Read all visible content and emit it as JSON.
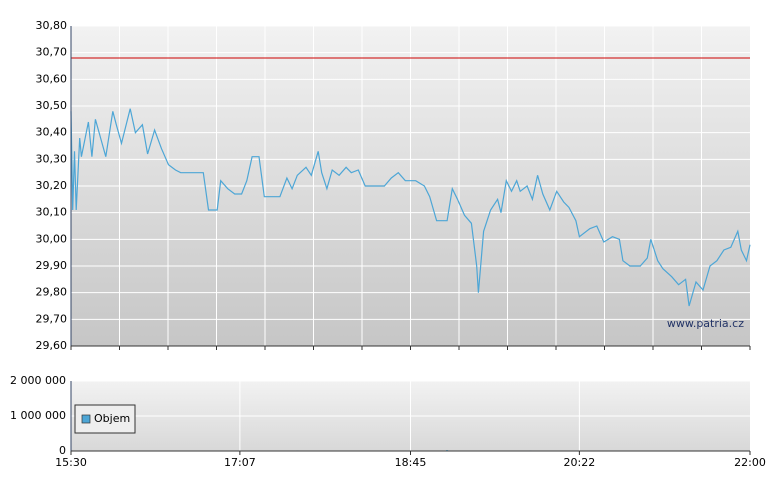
{
  "chart_data": [
    {
      "type": "line",
      "color": "#4da6d6",
      "xlim": [
        "15:30",
        "22:00"
      ],
      "ylim": [
        29.6,
        30.8
      ],
      "yticks": [
        {
          "value": 29.6,
          "label": "29,60"
        },
        {
          "value": 29.7,
          "label": "29,70"
        },
        {
          "value": 29.8,
          "label": "29,80"
        },
        {
          "value": 29.9,
          "label": "29,90"
        },
        {
          "value": 30.0,
          "label": "30,00"
        },
        {
          "value": 30.1,
          "label": "30,10"
        },
        {
          "value": 30.2,
          "label": "30,20"
        },
        {
          "value": 30.3,
          "label": "30,30"
        },
        {
          "value": 30.4,
          "label": "30,40"
        },
        {
          "value": 30.5,
          "label": "30,50"
        },
        {
          "value": 30.6,
          "label": "30,60"
        },
        {
          "value": 30.7,
          "label": "30,70"
        },
        {
          "value": 30.8,
          "label": "30,80"
        }
      ],
      "reference_line": {
        "value": 30.68,
        "color": "#cc0000"
      },
      "watermark": "www.patria.cz",
      "x": [
        "15:30",
        "15:31",
        "15:32",
        "15:33",
        "15:35",
        "15:36",
        "15:40",
        "15:42",
        "15:44",
        "15:47",
        "15:50",
        "15:54",
        "15:56",
        "15:59",
        "16:04",
        "16:07",
        "16:11",
        "16:14",
        "16:18",
        "16:22",
        "16:26",
        "16:30",
        "16:33",
        "16:46",
        "16:49",
        "16:54",
        "16:56",
        "17:00",
        "17:04",
        "17:08",
        "17:11",
        "17:14",
        "17:18",
        "17:21",
        "17:30",
        "17:34",
        "17:37",
        "17:40",
        "17:45",
        "17:48",
        "17:52",
        "17:54",
        "17:57",
        "18:00",
        "18:04",
        "18:08",
        "18:11",
        "18:15",
        "18:19",
        "18:30",
        "18:34",
        "18:38",
        "18:42",
        "18:48",
        "18:53",
        "18:56",
        "19:00",
        "19:06",
        "19:09",
        "19:12",
        "19:16",
        "19:20",
        "19:23",
        "19:24",
        "19:27",
        "19:31",
        "19:35",
        "19:37",
        "19:40",
        "19:43",
        "19:46",
        "19:48",
        "19:52",
        "19:55",
        "19:58",
        "20:01",
        "20:05",
        "20:09",
        "20:13",
        "20:16",
        "20:20",
        "20:22",
        "20:28",
        "20:32",
        "20:36",
        "20:41",
        "20:45",
        "20:47",
        "20:51",
        "20:57",
        "21:01",
        "21:03",
        "21:07",
        "21:10",
        "21:15",
        "21:19",
        "21:23",
        "21:25",
        "21:29",
        "21:33",
        "21:37",
        "21:41",
        "21:45",
        "21:49",
        "21:53",
        "21:55",
        "21:58",
        "22:00"
      ],
      "values": [
        30.48,
        30.11,
        30.33,
        30.11,
        30.38,
        30.31,
        30.44,
        30.31,
        30.45,
        30.38,
        30.31,
        30.48,
        30.43,
        30.36,
        30.49,
        30.4,
        30.43,
        30.32,
        30.41,
        30.34,
        30.28,
        30.26,
        30.25,
        30.25,
        30.11,
        30.11,
        30.22,
        30.19,
        30.17,
        30.17,
        30.22,
        30.31,
        30.31,
        30.16,
        30.16,
        30.23,
        30.19,
        30.24,
        30.27,
        30.24,
        30.33,
        30.25,
        30.19,
        30.26,
        30.24,
        30.27,
        30.25,
        30.26,
        30.2,
        30.2,
        30.23,
        30.25,
        30.22,
        30.22,
        30.2,
        30.16,
        30.07,
        30.07,
        30.19,
        30.15,
        30.09,
        30.06,
        29.9,
        29.8,
        30.03,
        30.11,
        30.15,
        30.1,
        30.22,
        30.18,
        30.22,
        30.18,
        30.2,
        30.15,
        30.24,
        30.17,
        30.11,
        30.18,
        30.14,
        30.12,
        30.07,
        30.01,
        30.04,
        30.05,
        29.99,
        30.01,
        30.0,
        29.92,
        29.9,
        29.9,
        29.93,
        30.0,
        29.92,
        29.89,
        29.86,
        29.83,
        29.85,
        29.75,
        29.84,
        29.81,
        29.9,
        29.92,
        29.96,
        29.97,
        30.03,
        29.96,
        29.92,
        29.98
      ]
    },
    {
      "type": "bar",
      "xlim": [
        "15:30",
        "22:00"
      ],
      "xticks": [
        "15:30",
        "17:07",
        "18:45",
        "20:22",
        "22:00"
      ],
      "ylim": [
        0,
        2000000
      ],
      "yticks": [
        0,
        {
          "value": 1000000,
          "label": "1 000 000"
        },
        {
          "value": 2000000,
          "label": "2 000 000"
        }
      ],
      "series": [
        {
          "name": "Objem",
          "color": "#4da6d6",
          "x": [
            "17:40",
            "19:06",
            "19:54"
          ],
          "values": [
            15000,
            25000,
            15000
          ]
        }
      ]
    }
  ]
}
